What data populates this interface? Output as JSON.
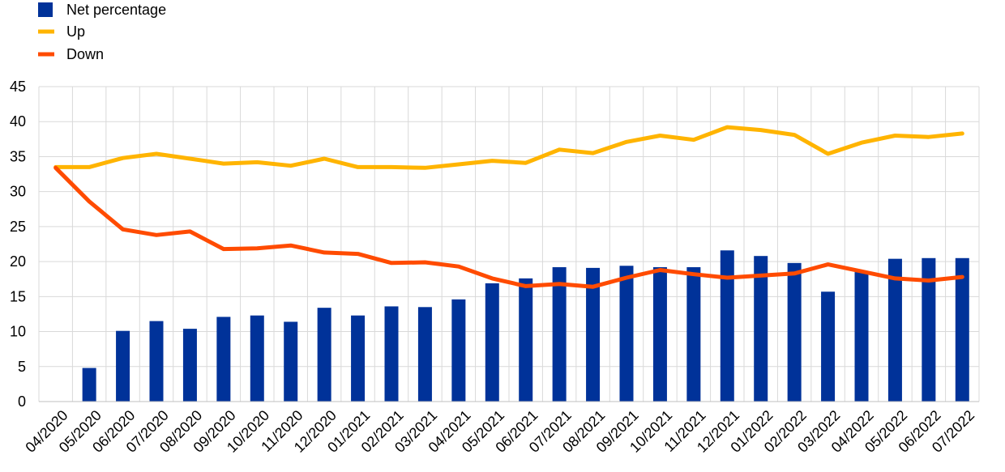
{
  "chart_data": {
    "type": "bar",
    "title": "",
    "xlabel": "",
    "ylabel": "",
    "ylim": [
      0,
      45
    ],
    "yticks": [
      0,
      5,
      10,
      15,
      20,
      25,
      30,
      35,
      40,
      45
    ],
    "grid": true,
    "legend_position": "top-left",
    "categories": [
      "04/2020",
      "05/2020",
      "06/2020",
      "07/2020",
      "08/2020",
      "09/2020",
      "10/2020",
      "11/2020",
      "12/2020",
      "01/2021",
      "02/2021",
      "03/2021",
      "04/2021",
      "05/2021",
      "06/2021",
      "07/2021",
      "08/2021",
      "09/2021",
      "10/2021",
      "11/2021",
      "12/2021",
      "01/2022",
      "02/2022",
      "03/2022",
      "04/2022",
      "05/2022",
      "06/2022",
      "07/2022"
    ],
    "series": [
      {
        "name": "Net percentage",
        "type": "bar",
        "color": "#003299",
        "values": [
          null,
          4.8,
          10.1,
          11.5,
          10.4,
          12.1,
          12.3,
          11.4,
          13.4,
          12.3,
          13.6,
          13.5,
          14.6,
          16.9,
          17.6,
          19.2,
          19.1,
          19.4,
          19.2,
          19.2,
          21.6,
          20.8,
          19.8,
          15.7,
          18.5,
          20.4,
          20.5,
          20.5
        ]
      },
      {
        "name": "Up",
        "type": "line",
        "color": "#FFB400",
        "values": [
          33.5,
          33.5,
          34.8,
          35.4,
          34.7,
          34.0,
          34.2,
          33.7,
          34.7,
          33.5,
          33.5,
          33.4,
          33.9,
          34.4,
          34.1,
          36.0,
          35.5,
          37.1,
          38.0,
          37.4,
          39.2,
          38.8,
          38.1,
          35.4,
          37.0,
          38.0,
          37.8,
          38.3
        ]
      },
      {
        "name": "Down",
        "type": "line",
        "color": "#FF4B00",
        "values": [
          33.4,
          28.6,
          24.6,
          23.8,
          24.3,
          21.8,
          21.9,
          22.3,
          21.3,
          21.1,
          19.8,
          19.9,
          19.3,
          17.6,
          16.5,
          16.8,
          16.4,
          17.7,
          18.8,
          18.2,
          17.7,
          18.0,
          18.3,
          19.6,
          18.6,
          17.6,
          17.3,
          17.8
        ]
      }
    ]
  }
}
